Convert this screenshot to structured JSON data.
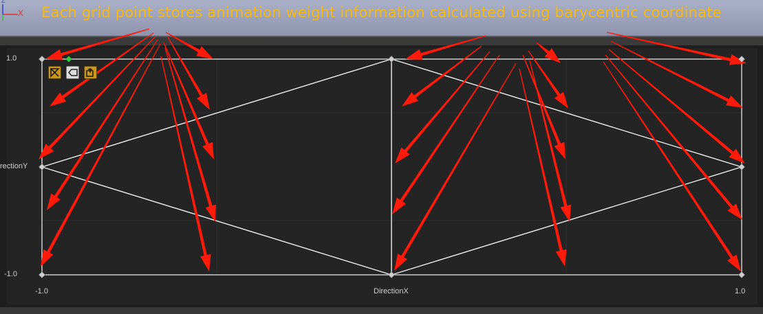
{
  "caption": "Each grid point stores animation weight information calculated using barycentric coordinate",
  "gizmo": {
    "x_label": "X",
    "y_label": "Z"
  },
  "axes": {
    "x_name": "DirectionX",
    "y_name": "rectionY",
    "x_min_label": "-1.0",
    "x_max_label": "1.0",
    "y_max_label": "1.0",
    "y_min_label": "-1.0"
  },
  "toolbar": {
    "buttons": [
      {
        "name": "edit-mode-button",
        "icon": "triangle-edit-icon",
        "style": "gold"
      },
      {
        "name": "label-toggle-button",
        "icon": "tag-icon",
        "style": "white"
      },
      {
        "name": "fit-view-button",
        "icon": "fit-frame-icon",
        "style": "gold"
      }
    ]
  },
  "colors": {
    "caption": "#f5b915",
    "arrow": "#ff1a0a",
    "line": "#f0f0f0",
    "node": "#cfcfcf",
    "selected_node": "#2ecc40",
    "grid": "#303030"
  }
}
